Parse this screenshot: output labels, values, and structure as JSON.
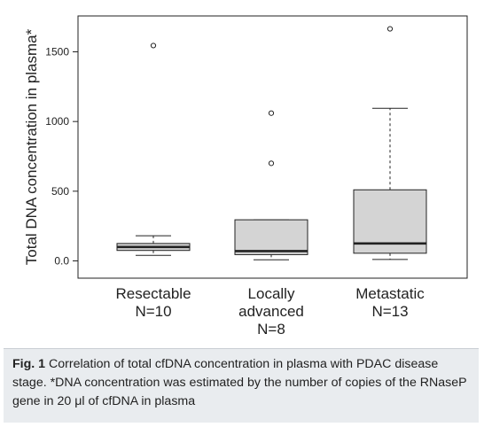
{
  "chart_data": {
    "type": "boxplot",
    "ylabel": "Total DNA concentration in plasma*",
    "ylim": [
      -50,
      1700
    ],
    "yticks": [
      0.0,
      500,
      1000,
      1500
    ],
    "ytick_labels": [
      "0.0",
      "500",
      "1000",
      "1500"
    ],
    "grid": false,
    "groups": [
      {
        "label_lines": [
          "Resectable",
          "N=10"
        ],
        "whisker_low": 40,
        "q1": 75,
        "median": 100,
        "q3": 125,
        "whisker_high": 180,
        "outliers": [
          1545
        ]
      },
      {
        "label_lines": [
          "Locally",
          "advanced",
          "N=8"
        ],
        "whisker_low": 8,
        "q1": 45,
        "median": 70,
        "q3": 295,
        "whisker_high": 295,
        "outliers": [
          700,
          1060
        ]
      },
      {
        "label_lines": [
          "Metastatic",
          "N=13"
        ],
        "whisker_low": 10,
        "q1": 55,
        "median": 125,
        "q3": 510,
        "whisker_high": 1095,
        "outliers": [
          1665
        ]
      }
    ]
  },
  "caption": {
    "label": "Fig. 1",
    "text": " Correlation of total cfDNA concentration in plasma with PDAC disease stage. *DNA concentration was estimated by the number of copies of the RNaseP gene in 20 μl of cfDNA in plasma"
  },
  "colors": {
    "box_fill": "#d4d4d4",
    "caption_bg": "#e9ecef",
    "stroke": "#222222"
  }
}
